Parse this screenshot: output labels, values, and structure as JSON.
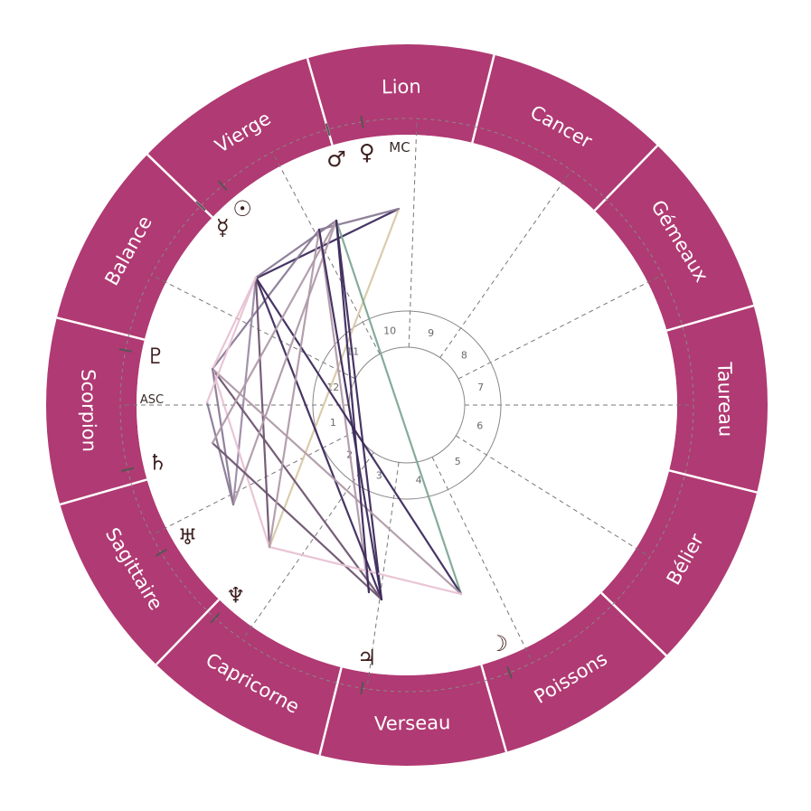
{
  "signs": [
    {
      "label": "Lion",
      "center_deg": 91
    },
    {
      "label": "Cancer",
      "center_deg": 61
    },
    {
      "label": "Gémeaux",
      "center_deg": 31
    },
    {
      "label": "Taureau",
      "center_deg": 1
    },
    {
      "label": "Bélier",
      "center_deg": -29
    },
    {
      "label": "Poissons",
      "center_deg": -59
    },
    {
      "label": "Verseau",
      "center_deg": -89
    },
    {
      "label": "Capricorne",
      "center_deg": -119
    },
    {
      "label": "Sagittaire",
      "center_deg": -149
    },
    {
      "label": "Scorpion",
      "center_deg": -179
    },
    {
      "label": "Balance",
      "center_deg": 151
    },
    {
      "label": "Vierge",
      "center_deg": 121
    }
  ],
  "sign_boundaries_deg": [
    106,
    76,
    46,
    16,
    -14,
    -44,
    -74,
    -104,
    -134,
    -164,
    166,
    136
  ],
  "houses": [
    {
      "label": "1",
      "cusp_deg": 180
    },
    {
      "label": "2",
      "cusp_deg": 207
    },
    {
      "label": "3",
      "cusp_deg": 235
    },
    {
      "label": "4",
      "cusp_deg": 262
    },
    {
      "label": "5",
      "cusp_deg": 296
    },
    {
      "label": "6",
      "cusp_deg": 328
    },
    {
      "label": "7",
      "cusp_deg": 0
    },
    {
      "label": "8",
      "cusp_deg": 27
    },
    {
      "label": "9",
      "cusp_deg": 55
    },
    {
      "label": "10",
      "cusp_deg": 88
    },
    {
      "label": "11",
      "cusp_deg": 118
    },
    {
      "label": "12",
      "cusp_deg": 153
    }
  ],
  "axes": {
    "asc": "ASC",
    "mc": "MC"
  },
  "planets": [
    {
      "name": "mars",
      "glyph": "♂",
      "deg": 106
    },
    {
      "name": "venus",
      "glyph": "♀",
      "deg": 99
    },
    {
      "name": "mercury",
      "glyph": "☿",
      "deg": 136
    },
    {
      "name": "sun",
      "glyph": "☉",
      "deg": 130
    },
    {
      "name": "pluto",
      "glyph": "♇",
      "deg": 169
    },
    {
      "name": "saturn",
      "glyph": "♄",
      "deg": 193
    },
    {
      "name": "uranus",
      "glyph": "♅",
      "deg": 211
    },
    {
      "name": "neptune",
      "glyph": "♆",
      "deg": 228
    },
    {
      "name": "jupiter",
      "glyph": "♃",
      "deg": 261
    },
    {
      "name": "moon",
      "glyph": "☽",
      "deg": 291
    }
  ],
  "colors": {
    "ring": "#b03a73",
    "divider": "#ffffff",
    "aspect_palette": [
      "#3d2a5c",
      "#8a7a96",
      "#b09aa9",
      "#e8c2d3",
      "#6e5570",
      "#7fa694",
      "#d8c8a8",
      "#9d8aa8"
    ]
  },
  "aspects": [
    [
      441,
      231,
      285,
      307,
      0
    ],
    [
      441,
      231,
      298,
      605,
      6
    ],
    [
      441,
      231,
      353,
      254,
      1
    ],
    [
      372,
      244,
      422,
      663,
      0
    ],
    [
      372,
      244,
      510,
      657,
      5
    ],
    [
      372,
      244,
      283,
      307,
      1
    ],
    [
      353,
      254,
      408,
      655,
      2
    ],
    [
      353,
      254,
      235,
      408,
      1
    ],
    [
      283,
      307,
      510,
      657,
      0
    ],
    [
      283,
      307,
      422,
      663,
      0
    ],
    [
      283,
      307,
      258,
      558,
      7
    ],
    [
      283,
      307,
      298,
      605,
      4
    ],
    [
      283,
      307,
      235,
      408,
      3
    ],
    [
      235,
      408,
      422,
      663,
      4
    ],
    [
      235,
      408,
      510,
      657,
      2
    ],
    [
      235,
      408,
      298,
      605,
      3
    ],
    [
      235,
      408,
      258,
      558,
      1
    ],
    [
      258,
      558,
      372,
      244,
      2
    ],
    [
      258,
      558,
      229,
      445,
      1
    ],
    [
      235,
      490,
      422,
      663,
      4
    ],
    [
      235,
      490,
      372,
      244,
      2
    ],
    [
      298,
      605,
      510,
      657,
      3
    ],
    [
      298,
      605,
      353,
      254,
      2
    ],
    [
      408,
      655,
      372,
      244,
      0
    ],
    [
      422,
      663,
      353,
      254,
      0
    ],
    [
      229,
      445,
      283,
      307,
      3
    ]
  ]
}
